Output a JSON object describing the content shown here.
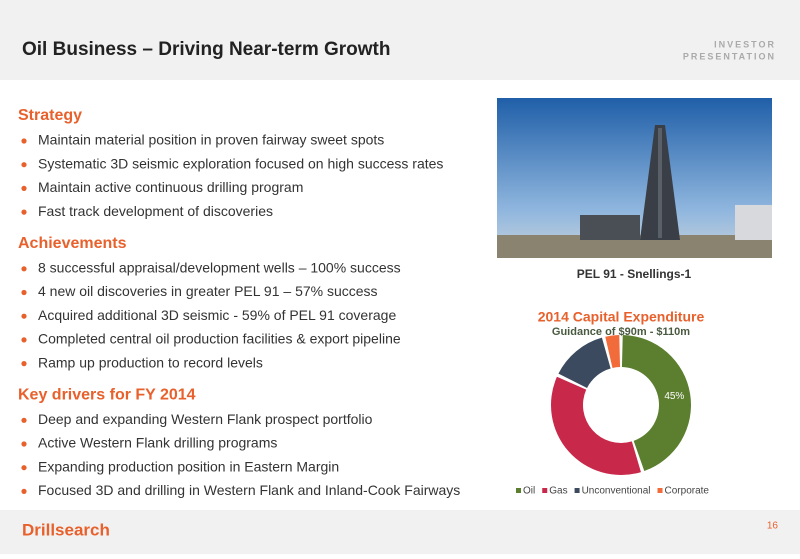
{
  "header": {
    "title": "Oil Business – Driving Near-term Growth",
    "tag_line1": "INVESTOR",
    "tag_line2": "PRESENTATION"
  },
  "sections": [
    {
      "heading": "Strategy",
      "bullets": [
        "Maintain material position in proven fairway sweet spots",
        "Systematic 3D seismic exploration focused on high success rates",
        "Maintain active continuous drilling program",
        "Fast track development of discoveries"
      ]
    },
    {
      "heading": "Achievements",
      "bullets": [
        "8 successful appraisal/development wells – 100% success",
        "4 new oil discoveries in greater PEL 91 – 57% success",
        "Acquired additional 3D seismic - 59% of PEL 91 coverage",
        "Completed central oil production facilities & export pipeline",
        "Ramp up production to record levels"
      ]
    },
    {
      "heading": "Key drivers for FY 2014",
      "bullets": [
        "Deep and expanding Western Flank prospect portfolio",
        "Active Western Flank drilling programs",
        "Expanding production position in Eastern Margin",
        "Focused 3D and drilling in Western Flank and Inland-Cook Fairways"
      ]
    }
  ],
  "photo_caption": "PEL 91 - Snellings-1",
  "chart_data": {
    "type": "pie",
    "title": "2014 Capital Expenditure",
    "subtitle": "Guidance of $90m - $110m",
    "categories": [
      "Oil",
      "Gas",
      "Unconventional",
      "Corporate"
    ],
    "values": [
      45,
      37,
      14,
      4
    ],
    "value_labels": [
      "45%",
      null,
      null,
      null
    ],
    "colors": [
      "#5b7f2f",
      "#c8284a",
      "#3b4a5e",
      "#f26b3a"
    ]
  },
  "footer": {
    "logo": "Drillsearch",
    "page": "16"
  }
}
